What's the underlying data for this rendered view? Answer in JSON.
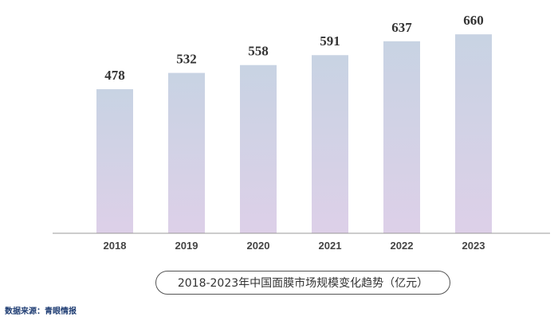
{
  "chart_data": {
    "type": "bar",
    "categories": [
      "2018",
      "2019",
      "2020",
      "2021",
      "2022",
      "2023"
    ],
    "values": [
      478,
      532,
      558,
      591,
      637,
      660
    ],
    "data_labels": [
      "478",
      "532",
      "558",
      "591",
      "637",
      "660"
    ],
    "title": "2018-2023年中国面膜市场规模变化趋势（亿元）",
    "xlabel": "",
    "ylabel": "",
    "ylim": [
      0,
      700
    ],
    "grid": false,
    "legend": "none",
    "bar_gradient": [
      "#c8d3e3",
      "#ddd0e8"
    ],
    "axis_color": "#999999"
  },
  "caption": "2018-2023年中国面膜市场规模变化趋势（亿元）",
  "source": "数据来源：青眼情报"
}
